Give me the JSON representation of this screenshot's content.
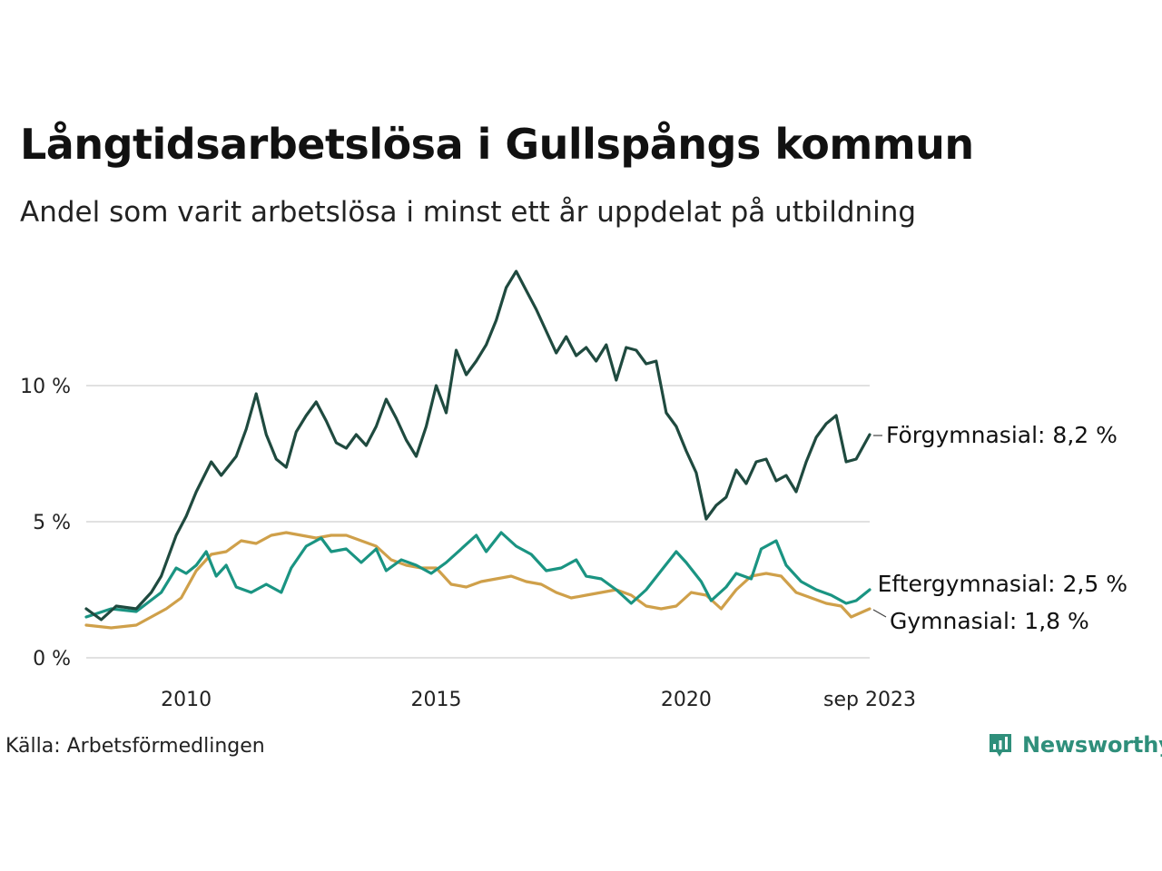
{
  "title": "Långtidsarbetslösa i Gullspångs kommun",
  "subtitle": "Andel som varit arbetslösa i minst ett år uppdelat på utbildning",
  "source": "Källa: Arbetsförmedlingen",
  "brand": "Newsworthy",
  "icons": {
    "logo": "newsworthy-bar-chart-icon"
  },
  "colors": {
    "forgymnasial": "#1f4a3f",
    "eftergymnasial": "#1a9482",
    "gymnasial": "#cfa04a",
    "grid": "#e1e1e1",
    "brand": "#2f8f7b"
  },
  "chart_data": {
    "type": "line",
    "title": "Långtidsarbetslösa i Gullspångs kommun",
    "subtitle": "Andel som varit arbetslösa i minst ett år uppdelat på utbildning",
    "xlabel": "",
    "ylabel": "",
    "ylim": [
      0,
      14.5
    ],
    "xlim": [
      2008.0,
      2023.67
    ],
    "grid": true,
    "legend": "end-of-line labels",
    "y_ticks": [
      {
        "value": 0,
        "label": "0 %"
      },
      {
        "value": 5,
        "label": "5 %"
      },
      {
        "value": 10,
        "label": "10 %"
      }
    ],
    "x_ticks": [
      {
        "value": 2010,
        "label": "2010"
      },
      {
        "value": 2015,
        "label": "2015"
      },
      {
        "value": 2020,
        "label": "2020"
      },
      {
        "value": 2023.67,
        "label": "sep 2023"
      }
    ],
    "series": [
      {
        "name": "Förgymnasial",
        "end_label": "Förgymnasial: 8,2 %",
        "color": "#1f4a3f",
        "points": [
          [
            2008.0,
            1.8
          ],
          [
            2008.3,
            1.4
          ],
          [
            2008.6,
            1.9
          ],
          [
            2009.0,
            1.8
          ],
          [
            2009.3,
            2.4
          ],
          [
            2009.5,
            3.0
          ],
          [
            2009.8,
            4.5
          ],
          [
            2010.0,
            5.2
          ],
          [
            2010.2,
            6.1
          ],
          [
            2010.5,
            7.2
          ],
          [
            2010.7,
            6.7
          ],
          [
            2011.0,
            7.4
          ],
          [
            2011.2,
            8.4
          ],
          [
            2011.4,
            9.7
          ],
          [
            2011.6,
            8.2
          ],
          [
            2011.8,
            7.3
          ],
          [
            2012.0,
            7.0
          ],
          [
            2012.2,
            8.3
          ],
          [
            2012.4,
            8.9
          ],
          [
            2012.6,
            9.4
          ],
          [
            2012.8,
            8.7
          ],
          [
            2013.0,
            7.9
          ],
          [
            2013.2,
            7.7
          ],
          [
            2013.4,
            8.2
          ],
          [
            2013.6,
            7.8
          ],
          [
            2013.8,
            8.5
          ],
          [
            2014.0,
            9.5
          ],
          [
            2014.2,
            8.8
          ],
          [
            2014.4,
            8.0
          ],
          [
            2014.6,
            7.4
          ],
          [
            2014.8,
            8.5
          ],
          [
            2015.0,
            10.0
          ],
          [
            2015.2,
            9.0
          ],
          [
            2015.4,
            11.3
          ],
          [
            2015.6,
            10.4
          ],
          [
            2015.8,
            10.9
          ],
          [
            2016.0,
            11.5
          ],
          [
            2016.2,
            12.4
          ],
          [
            2016.4,
            13.6
          ],
          [
            2016.6,
            14.2
          ],
          [
            2016.8,
            13.5
          ],
          [
            2017.0,
            12.8
          ],
          [
            2017.2,
            12.0
          ],
          [
            2017.4,
            11.2
          ],
          [
            2017.6,
            11.8
          ],
          [
            2017.8,
            11.1
          ],
          [
            2018.0,
            11.4
          ],
          [
            2018.2,
            10.9
          ],
          [
            2018.4,
            11.5
          ],
          [
            2018.6,
            10.2
          ],
          [
            2018.8,
            11.4
          ],
          [
            2019.0,
            11.3
          ],
          [
            2019.2,
            10.8
          ],
          [
            2019.4,
            10.9
          ],
          [
            2019.6,
            9.0
          ],
          [
            2019.8,
            8.5
          ],
          [
            2020.0,
            7.6
          ],
          [
            2020.2,
            6.8
          ],
          [
            2020.4,
            5.1
          ],
          [
            2020.6,
            5.6
          ],
          [
            2020.8,
            5.9
          ],
          [
            2021.0,
            6.9
          ],
          [
            2021.2,
            6.4
          ],
          [
            2021.4,
            7.2
          ],
          [
            2021.6,
            7.3
          ],
          [
            2021.8,
            6.5
          ],
          [
            2022.0,
            6.7
          ],
          [
            2022.2,
            6.1
          ],
          [
            2022.4,
            7.2
          ],
          [
            2022.6,
            8.1
          ],
          [
            2022.8,
            8.6
          ],
          [
            2023.0,
            8.9
          ],
          [
            2023.2,
            7.2
          ],
          [
            2023.4,
            7.3
          ],
          [
            2023.67,
            8.2
          ]
        ]
      },
      {
        "name": "Eftergymnasial",
        "end_label": "Eftergymnasial: 2,5 %",
        "color": "#1a9482",
        "points": [
          [
            2008.0,
            1.5
          ],
          [
            2008.5,
            1.8
          ],
          [
            2009.0,
            1.7
          ],
          [
            2009.5,
            2.4
          ],
          [
            2009.8,
            3.3
          ],
          [
            2010.0,
            3.1
          ],
          [
            2010.2,
            3.4
          ],
          [
            2010.4,
            3.9
          ],
          [
            2010.6,
            3.0
          ],
          [
            2010.8,
            3.4
          ],
          [
            2011.0,
            2.6
          ],
          [
            2011.3,
            2.4
          ],
          [
            2011.6,
            2.7
          ],
          [
            2011.9,
            2.4
          ],
          [
            2012.1,
            3.3
          ],
          [
            2012.4,
            4.1
          ],
          [
            2012.7,
            4.4
          ],
          [
            2012.9,
            3.9
          ],
          [
            2013.2,
            4.0
          ],
          [
            2013.5,
            3.5
          ],
          [
            2013.8,
            4.0
          ],
          [
            2014.0,
            3.2
          ],
          [
            2014.3,
            3.6
          ],
          [
            2014.6,
            3.4
          ],
          [
            2014.9,
            3.1
          ],
          [
            2015.2,
            3.5
          ],
          [
            2015.5,
            4.0
          ],
          [
            2015.8,
            4.5
          ],
          [
            2016.0,
            3.9
          ],
          [
            2016.3,
            4.6
          ],
          [
            2016.6,
            4.1
          ],
          [
            2016.9,
            3.8
          ],
          [
            2017.2,
            3.2
          ],
          [
            2017.5,
            3.3
          ],
          [
            2017.8,
            3.6
          ],
          [
            2018.0,
            3.0
          ],
          [
            2018.3,
            2.9
          ],
          [
            2018.6,
            2.5
          ],
          [
            2018.9,
            2.0
          ],
          [
            2019.2,
            2.5
          ],
          [
            2019.5,
            3.2
          ],
          [
            2019.8,
            3.9
          ],
          [
            2020.0,
            3.5
          ],
          [
            2020.3,
            2.8
          ],
          [
            2020.5,
            2.1
          ],
          [
            2020.8,
            2.6
          ],
          [
            2021.0,
            3.1
          ],
          [
            2021.3,
            2.9
          ],
          [
            2021.5,
            4.0
          ],
          [
            2021.8,
            4.3
          ],
          [
            2022.0,
            3.4
          ],
          [
            2022.3,
            2.8
          ],
          [
            2022.6,
            2.5
          ],
          [
            2022.9,
            2.3
          ],
          [
            2023.2,
            2.0
          ],
          [
            2023.4,
            2.1
          ],
          [
            2023.67,
            2.5
          ]
        ]
      },
      {
        "name": "Gymnasial",
        "end_label": "Gymnasial: 1,8 %",
        "color": "#cfa04a",
        "points": [
          [
            2008.0,
            1.2
          ],
          [
            2008.5,
            1.1
          ],
          [
            2009.0,
            1.2
          ],
          [
            2009.3,
            1.5
          ],
          [
            2009.6,
            1.8
          ],
          [
            2009.9,
            2.2
          ],
          [
            2010.2,
            3.2
          ],
          [
            2010.5,
            3.8
          ],
          [
            2010.8,
            3.9
          ],
          [
            2011.1,
            4.3
          ],
          [
            2011.4,
            4.2
          ],
          [
            2011.7,
            4.5
          ],
          [
            2012.0,
            4.6
          ],
          [
            2012.3,
            4.5
          ],
          [
            2012.6,
            4.4
          ],
          [
            2012.9,
            4.5
          ],
          [
            2013.2,
            4.5
          ],
          [
            2013.5,
            4.3
          ],
          [
            2013.8,
            4.1
          ],
          [
            2014.1,
            3.6
          ],
          [
            2014.4,
            3.4
          ],
          [
            2014.7,
            3.3
          ],
          [
            2015.0,
            3.3
          ],
          [
            2015.3,
            2.7
          ],
          [
            2015.6,
            2.6
          ],
          [
            2015.9,
            2.8
          ],
          [
            2016.2,
            2.9
          ],
          [
            2016.5,
            3.0
          ],
          [
            2016.8,
            2.8
          ],
          [
            2017.1,
            2.7
          ],
          [
            2017.4,
            2.4
          ],
          [
            2017.7,
            2.2
          ],
          [
            2018.0,
            2.3
          ],
          [
            2018.3,
            2.4
          ],
          [
            2018.6,
            2.5
          ],
          [
            2018.9,
            2.3
          ],
          [
            2019.2,
            1.9
          ],
          [
            2019.5,
            1.8
          ],
          [
            2019.8,
            1.9
          ],
          [
            2020.1,
            2.4
          ],
          [
            2020.4,
            2.3
          ],
          [
            2020.7,
            1.8
          ],
          [
            2021.0,
            2.5
          ],
          [
            2021.3,
            3.0
          ],
          [
            2021.6,
            3.1
          ],
          [
            2021.9,
            3.0
          ],
          [
            2022.2,
            2.4
          ],
          [
            2022.5,
            2.2
          ],
          [
            2022.8,
            2.0
          ],
          [
            2023.1,
            1.9
          ],
          [
            2023.3,
            1.5
          ],
          [
            2023.67,
            1.8
          ]
        ]
      }
    ]
  }
}
